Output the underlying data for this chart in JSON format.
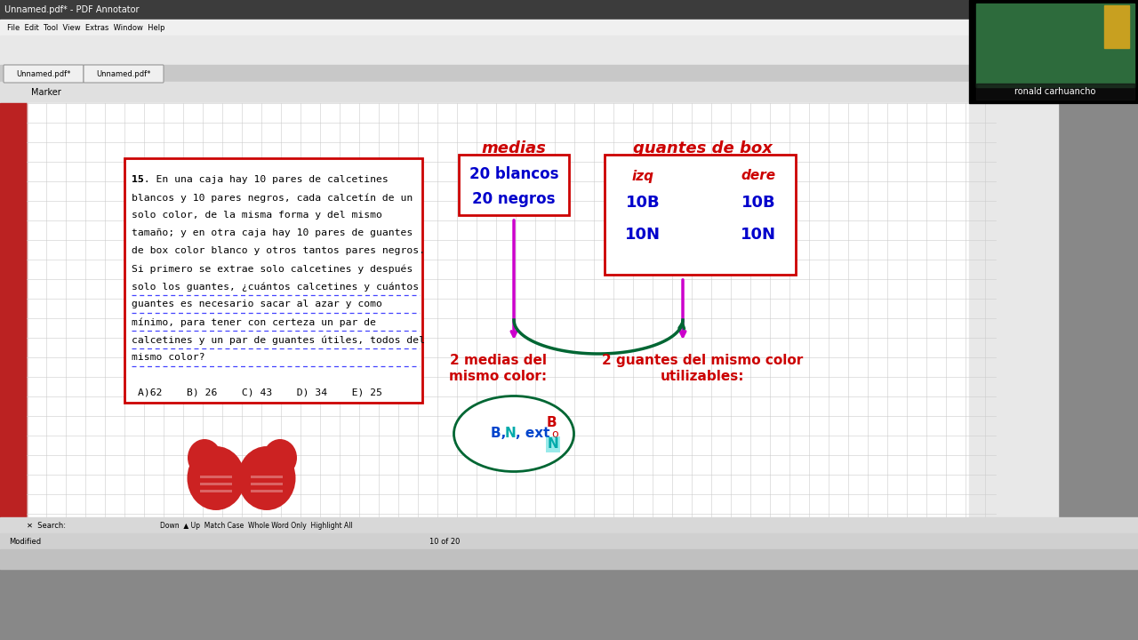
{
  "bg_color": "#f0f0f0",
  "main_bg": "#ffffff",
  "grid_color": "#d0d0d0",
  "red": "#cc0000",
  "magenta": "#cc00cc",
  "blue": "#0000cc",
  "green_dark": "#006633",
  "cyan": "#00aaaa",
  "window_title": "Unnamed.pdf* - PDF Annotator",
  "tab1": "Unnamed.pdf*",
  "tab2": "Unnamed.pdf*",
  "name_label": "ronald carhuancho",
  "problem_text_lines": [
    "15. En una caja hay 10 pares de calcetines",
    "blancos y 10 pares negros, cada calcetín de un",
    "solo color, de la misma forma y del mismo",
    "tamaño; y en otra caja hay 10 pares de guantes",
    "de box color blanco y otros tantos pares negros.",
    "Si primero se extrae solo calcetines y después",
    "solo los guantes, ¿cuántos calcetines y cuántos",
    "guantes es necesario sacar al azar y como",
    "mínimo, para tener con certeza un par de",
    "calcetines y un par de guantes útiles, todos del",
    "mismo color?"
  ],
  "answers": "A)62    B) 26    C) 43    D) 34    E) 25",
  "medias_title": "medias",
  "medias_box_line1": "20 blancos",
  "medias_box_line2": "20 negros",
  "guantes_title": "guantes de box",
  "guantes_col1": "izq",
  "guantes_col2": "dere",
  "guantes_r1c1": "10B",
  "guantes_r1c2": "10B",
  "guantes_r2c1": "10N",
  "guantes_r2c2": "10N",
  "arrow1_label1": "2 medias del",
  "arrow1_label2": "mismo color:",
  "arrow2_label1": "2 guantes del mismo color",
  "arrow2_label2": "utilizables:",
  "circle_text": "B, N, ext",
  "circle_inner_B": "B",
  "circle_inner_o": "o",
  "circle_inner_N": "N"
}
